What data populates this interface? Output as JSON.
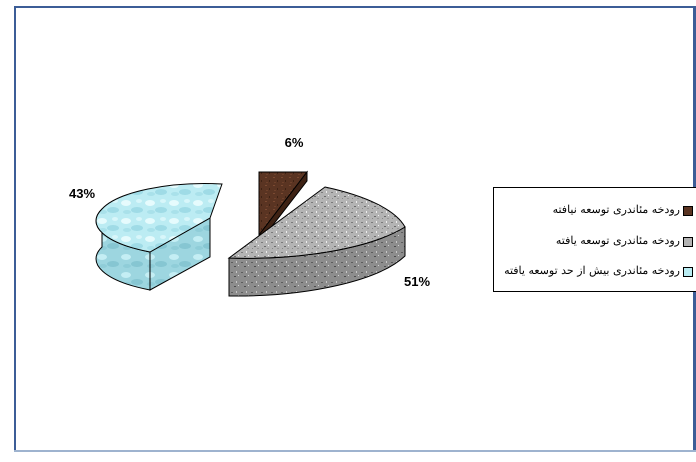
{
  "chart_data": {
    "type": "pie",
    "slices": [
      {
        "label": "رودخه مئاندری توسعه نیافته",
        "value": 6,
        "value_label": "6%",
        "color": "#5a3422"
      },
      {
        "label": "رودخه مئاندری توسعه یافته",
        "value": 51,
        "value_label": "51%",
        "color": "#b4b4b4"
      },
      {
        "label": "رودخه مئاندری بیش از حد توسعه یافته",
        "value": 43,
        "value_label": "43%",
        "color": "#b9ecf2"
      }
    ],
    "legend_position": "right",
    "style": "3d-exploded"
  }
}
